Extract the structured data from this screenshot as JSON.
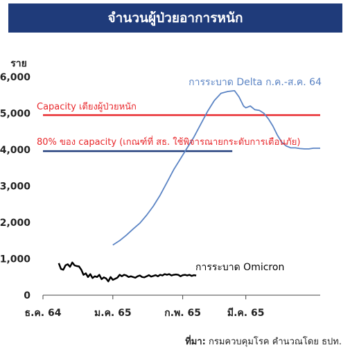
{
  "title": "จำนวนผู้ป่วยอาการหนัก",
  "source": {
    "label": "ที่มา:",
    "text": " กรมควบคุมโรค คำนวณโดย ธปท."
  },
  "chart_data": {
    "type": "line",
    "ylabel": "ราย",
    "ylim": [
      0,
      6000
    ],
    "y_ticks": [
      {
        "value": 0,
        "label": "0"
      },
      {
        "value": 1000,
        "label": "1,000"
      },
      {
        "value": 2000,
        "label": "2,000"
      },
      {
        "value": 3000,
        "label": "3,000"
      },
      {
        "value": 4000,
        "label": "4,000"
      },
      {
        "value": 5000,
        "label": "5,000"
      },
      {
        "value": 6000,
        "label": "6,000"
      }
    ],
    "xlim": [
      0,
      123
    ],
    "x_ticks": [
      {
        "value": 0,
        "label": "ธ.ค. 64"
      },
      {
        "value": 31,
        "label": "ม.ค. 65"
      },
      {
        "value": 62,
        "label": "ก.พ. 65"
      },
      {
        "value": 90,
        "label": "มี.ค. 65"
      }
    ],
    "grid": false,
    "colors": {
      "delta": "#5b84c4",
      "omicron": "#000000",
      "capacity": "#e8262a",
      "capacity80": "#1f3b7a",
      "title_bg": "#1f3b7a"
    },
    "reference_lines": [
      {
        "name": "Capacity เตียงผู้ป่วยหนัก",
        "value": 4950,
        "x_start": 0,
        "x_end": 123,
        "color": "#e8262a"
      },
      {
        "name": "80% ของ capacity (เกณฑ์ที่ สธ. ใช้พิจารณายกระดับการเตือนภัย)",
        "value": 3960,
        "x_start": 0,
        "x_end": 84,
        "color": "#1f3b7a"
      }
    ],
    "series": [
      {
        "name": "การระบาด Delta ก.ค.-ส.ค. 64",
        "color": "#5b84c4",
        "x": [
          31,
          34,
          37,
          40,
          43,
          46,
          49,
          52,
          55,
          58,
          61,
          64,
          67,
          70,
          73,
          76,
          79,
          82,
          85,
          87,
          89,
          90,
          92,
          94,
          96,
          98,
          100,
          102,
          104,
          106,
          108,
          110,
          112,
          114,
          116,
          118,
          120,
          123
        ],
        "values": [
          1380,
          1500,
          1650,
          1820,
          1980,
          2200,
          2450,
          2750,
          3100,
          3450,
          3750,
          4050,
          4350,
          4700,
          5050,
          5350,
          5550,
          5600,
          5620,
          5450,
          5200,
          5150,
          5200,
          5100,
          5080,
          5000,
          4850,
          4650,
          4400,
          4200,
          4100,
          4050,
          4050,
          4030,
          4020,
          4020,
          4040,
          4040
        ]
      },
      {
        "name": "การระบาด Omicron",
        "color": "#000000",
        "x": [
          7,
          8,
          9,
          10,
          11,
          12,
          13,
          14,
          15,
          16,
          17,
          18,
          19,
          20,
          21,
          22,
          23,
          24,
          25,
          26,
          27,
          28,
          29,
          30,
          31,
          32,
          33,
          34,
          35,
          36,
          37,
          38,
          39,
          40,
          41,
          42,
          43,
          44,
          45,
          46,
          47,
          48,
          49,
          50,
          51,
          52,
          53,
          54,
          55,
          56,
          57,
          58,
          59,
          60,
          61,
          62,
          63,
          64,
          65,
          66,
          67,
          68
        ],
        "values": [
          880,
          720,
          700,
          820,
          850,
          780,
          900,
          820,
          800,
          790,
          700,
          560,
          600,
          500,
          580,
          470,
          520,
          500,
          560,
          440,
          490,
          460,
          380,
          500,
          420,
          450,
          480,
          560,
          520,
          560,
          540,
          500,
          520,
          500,
          480,
          520,
          540,
          500,
          490,
          520,
          550,
          510,
          530,
          550,
          520,
          560,
          540,
          580,
          560,
          580,
          540,
          560,
          570,
          560,
          520,
          550,
          560,
          540,
          560,
          530,
          550,
          540
        ]
      }
    ]
  }
}
